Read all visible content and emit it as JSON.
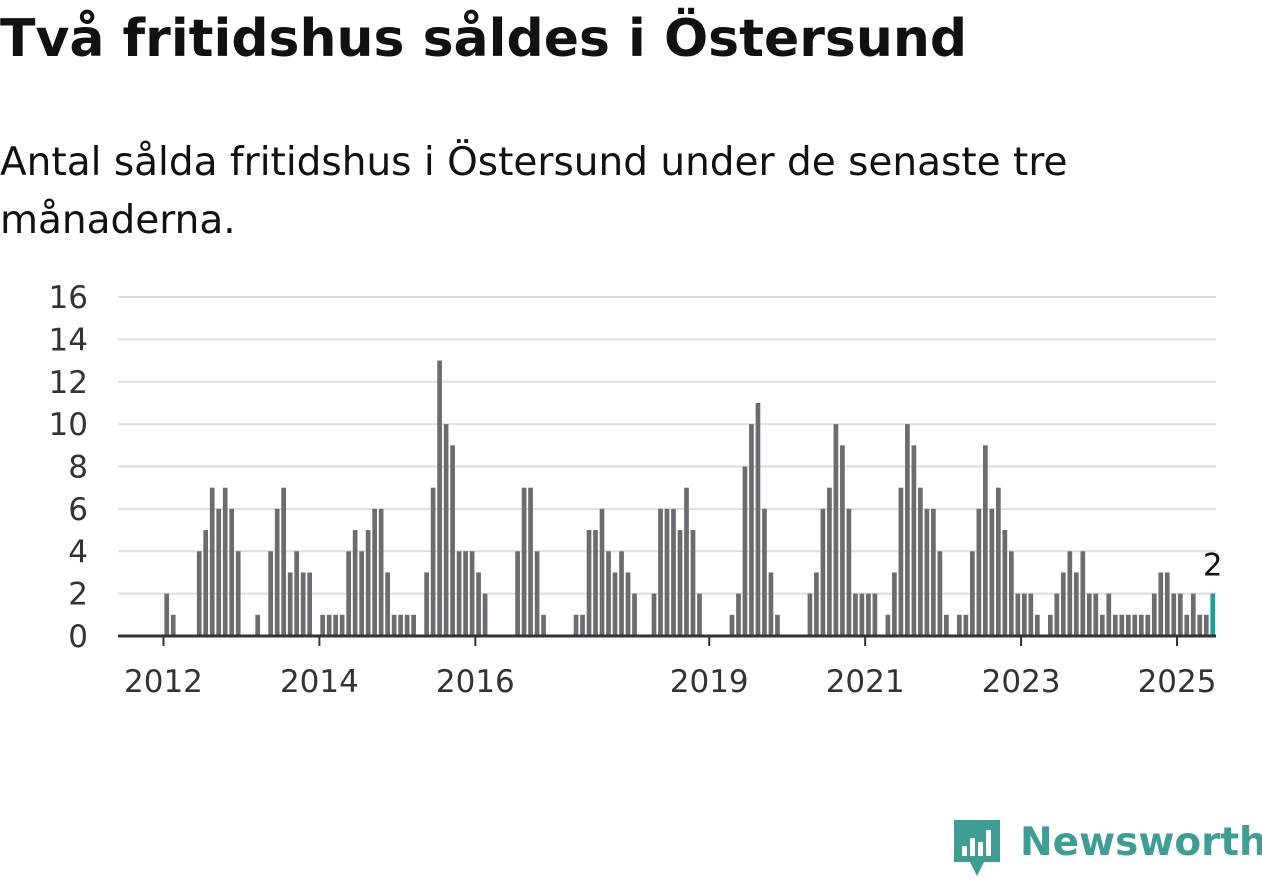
{
  "title": "Två fritidshus såldes i Östersund",
  "subtitle": "Antal sålda fritidshus i Östersund under de senaste tre månaderna.",
  "brand": {
    "name": "Newsworthy",
    "logo": "newsworthy-chart-logo-icon",
    "color": "#3e9e94"
  },
  "colors": {
    "bar": "#6b6b70",
    "highlight": "#17a39a",
    "grid": "#dedede",
    "axis": "#333333"
  },
  "chart_data": {
    "type": "bar",
    "title": "Två fritidshus såldes i Östersund",
    "xlabel": "",
    "ylabel": "",
    "ylim": [
      0,
      16
    ],
    "yticks": [
      0,
      2,
      4,
      6,
      8,
      10,
      12,
      14,
      16
    ],
    "x_tick_labels": [
      "2012",
      "2014",
      "2016",
      "2019",
      "2021",
      "2023",
      "2025"
    ],
    "grid": true,
    "legend": "none",
    "x_domain": [
      "2011-06",
      "2025-07"
    ],
    "highlight_label": "2",
    "bars": [
      {
        "x": "2012-01",
        "v": 2
      },
      {
        "x": "2012-02",
        "v": 1
      },
      {
        "x": "2012-06",
        "v": 4
      },
      {
        "x": "2012-07",
        "v": 5
      },
      {
        "x": "2012-08",
        "v": 7
      },
      {
        "x": "2012-09",
        "v": 6
      },
      {
        "x": "2012-10",
        "v": 7
      },
      {
        "x": "2012-11",
        "v": 6
      },
      {
        "x": "2012-12",
        "v": 4
      },
      {
        "x": "2013-03",
        "v": 1
      },
      {
        "x": "2013-05",
        "v": 4
      },
      {
        "x": "2013-06",
        "v": 6
      },
      {
        "x": "2013-07",
        "v": 7
      },
      {
        "x": "2013-08",
        "v": 3
      },
      {
        "x": "2013-09",
        "v": 4
      },
      {
        "x": "2013-10",
        "v": 3
      },
      {
        "x": "2013-11",
        "v": 3
      },
      {
        "x": "2014-01",
        "v": 1
      },
      {
        "x": "2014-02",
        "v": 1
      },
      {
        "x": "2014-03",
        "v": 1
      },
      {
        "x": "2014-04",
        "v": 1
      },
      {
        "x": "2014-05",
        "v": 4
      },
      {
        "x": "2014-06",
        "v": 5
      },
      {
        "x": "2014-07",
        "v": 4
      },
      {
        "x": "2014-08",
        "v": 5
      },
      {
        "x": "2014-09",
        "v": 6
      },
      {
        "x": "2014-10",
        "v": 6
      },
      {
        "x": "2014-11",
        "v": 3
      },
      {
        "x": "2014-12",
        "v": 1
      },
      {
        "x": "2015-01",
        "v": 1
      },
      {
        "x": "2015-02",
        "v": 1
      },
      {
        "x": "2015-03",
        "v": 1
      },
      {
        "x": "2015-05",
        "v": 3
      },
      {
        "x": "2015-06",
        "v": 7
      },
      {
        "x": "2015-07",
        "v": 13
      },
      {
        "x": "2015-08",
        "v": 10
      },
      {
        "x": "2015-09",
        "v": 9
      },
      {
        "x": "2015-10",
        "v": 4
      },
      {
        "x": "2015-11",
        "v": 4
      },
      {
        "x": "2015-12",
        "v": 4
      },
      {
        "x": "2016-01",
        "v": 3
      },
      {
        "x": "2016-02",
        "v": 2
      },
      {
        "x": "2016-07",
        "v": 4
      },
      {
        "x": "2016-08",
        "v": 7
      },
      {
        "x": "2016-09",
        "v": 7
      },
      {
        "x": "2016-10",
        "v": 4
      },
      {
        "x": "2016-11",
        "v": 1
      },
      {
        "x": "2017-04",
        "v": 1
      },
      {
        "x": "2017-05",
        "v": 1
      },
      {
        "x": "2017-06",
        "v": 5
      },
      {
        "x": "2017-07",
        "v": 5
      },
      {
        "x": "2017-08",
        "v": 6
      },
      {
        "x": "2017-09",
        "v": 4
      },
      {
        "x": "2017-10",
        "v": 3
      },
      {
        "x": "2017-11",
        "v": 4
      },
      {
        "x": "2017-12",
        "v": 3
      },
      {
        "x": "2018-01",
        "v": 2
      },
      {
        "x": "2018-04",
        "v": 2
      },
      {
        "x": "2018-05",
        "v": 6
      },
      {
        "x": "2018-06",
        "v": 6
      },
      {
        "x": "2018-07",
        "v": 6
      },
      {
        "x": "2018-08",
        "v": 5
      },
      {
        "x": "2018-09",
        "v": 7
      },
      {
        "x": "2018-10",
        "v": 5
      },
      {
        "x": "2018-11",
        "v": 2
      },
      {
        "x": "2019-04",
        "v": 1
      },
      {
        "x": "2019-05",
        "v": 2
      },
      {
        "x": "2019-06",
        "v": 8
      },
      {
        "x": "2019-07",
        "v": 10
      },
      {
        "x": "2019-08",
        "v": 11
      },
      {
        "x": "2019-09",
        "v": 6
      },
      {
        "x": "2019-10",
        "v": 3
      },
      {
        "x": "2019-11",
        "v": 1
      },
      {
        "x": "2020-04",
        "v": 2
      },
      {
        "x": "2020-05",
        "v": 3
      },
      {
        "x": "2020-06",
        "v": 6
      },
      {
        "x": "2020-07",
        "v": 7
      },
      {
        "x": "2020-08",
        "v": 10
      },
      {
        "x": "2020-09",
        "v": 9
      },
      {
        "x": "2020-10",
        "v": 6
      },
      {
        "x": "2020-11",
        "v": 2
      },
      {
        "x": "2020-12",
        "v": 2
      },
      {
        "x": "2021-01",
        "v": 2
      },
      {
        "x": "2021-02",
        "v": 2
      },
      {
        "x": "2021-04",
        "v": 1
      },
      {
        "x": "2021-05",
        "v": 3
      },
      {
        "x": "2021-06",
        "v": 7
      },
      {
        "x": "2021-07",
        "v": 10
      },
      {
        "x": "2021-08",
        "v": 9
      },
      {
        "x": "2021-09",
        "v": 7
      },
      {
        "x": "2021-10",
        "v": 6
      },
      {
        "x": "2021-11",
        "v": 6
      },
      {
        "x": "2021-12",
        "v": 4
      },
      {
        "x": "2022-01",
        "v": 1
      },
      {
        "x": "2022-03",
        "v": 1
      },
      {
        "x": "2022-04",
        "v": 1
      },
      {
        "x": "2022-05",
        "v": 4
      },
      {
        "x": "2022-06",
        "v": 6
      },
      {
        "x": "2022-07",
        "v": 9
      },
      {
        "x": "2022-08",
        "v": 6
      },
      {
        "x": "2022-09",
        "v": 7
      },
      {
        "x": "2022-10",
        "v": 5
      },
      {
        "x": "2022-11",
        "v": 4
      },
      {
        "x": "2022-12",
        "v": 2
      },
      {
        "x": "2023-01",
        "v": 2
      },
      {
        "x": "2023-02",
        "v": 2
      },
      {
        "x": "2023-03",
        "v": 1
      },
      {
        "x": "2023-05",
        "v": 1
      },
      {
        "x": "2023-06",
        "v": 2
      },
      {
        "x": "2023-07",
        "v": 3
      },
      {
        "x": "2023-08",
        "v": 4
      },
      {
        "x": "2023-09",
        "v": 3
      },
      {
        "x": "2023-10",
        "v": 4
      },
      {
        "x": "2023-11",
        "v": 2
      },
      {
        "x": "2023-12",
        "v": 2
      },
      {
        "x": "2024-01",
        "v": 1
      },
      {
        "x": "2024-02",
        "v": 2
      },
      {
        "x": "2024-03",
        "v": 1
      },
      {
        "x": "2024-04",
        "v": 1
      },
      {
        "x": "2024-05",
        "v": 1
      },
      {
        "x": "2024-06",
        "v": 1
      },
      {
        "x": "2024-07",
        "v": 1
      },
      {
        "x": "2024-08",
        "v": 1
      },
      {
        "x": "2024-09",
        "v": 2
      },
      {
        "x": "2024-10",
        "v": 3
      },
      {
        "x": "2024-11",
        "v": 3
      },
      {
        "x": "2024-12",
        "v": 2
      },
      {
        "x": "2025-01",
        "v": 2
      },
      {
        "x": "2025-02",
        "v": 1
      },
      {
        "x": "2025-03",
        "v": 2
      },
      {
        "x": "2025-04",
        "v": 1
      },
      {
        "x": "2025-05",
        "v": 1
      },
      {
        "x": "2025-06",
        "v": 2,
        "highlight": true
      }
    ]
  }
}
